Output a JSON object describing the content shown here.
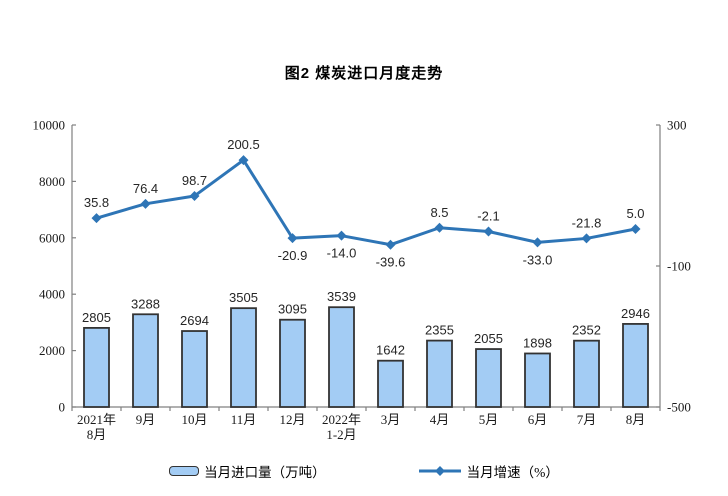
{
  "title": "图2 煤炭进口月度走势",
  "colors": {
    "bar_fill": "#a3ccf4",
    "bar_border": "#333333",
    "line": "#2e75b6",
    "axis": "#808080",
    "text": "#1a1a1a"
  },
  "legend": {
    "bar_label": "当月进口量（万吨）",
    "line_label": "当月增速（%）"
  },
  "chart_data": {
    "type": "bar+line",
    "title": "图2 煤炭进口月度走势",
    "categories": [
      [
        "2021年",
        "8月"
      ],
      [
        "9月"
      ],
      [
        "10月"
      ],
      [
        "11月"
      ],
      [
        "12月"
      ],
      [
        "2022年",
        "1-2月"
      ],
      [
        "3月"
      ],
      [
        "4月"
      ],
      [
        "5月"
      ],
      [
        "6月"
      ],
      [
        "7月"
      ],
      [
        "8月"
      ]
    ],
    "series": [
      {
        "name": "当月进口量（万吨）",
        "type": "bar",
        "axis": "left",
        "values": [
          2805,
          3288,
          2694,
          3505,
          3095,
          3539,
          1642,
          2355,
          2055,
          1898,
          2352,
          2946
        ]
      },
      {
        "name": "当月增速（%）",
        "type": "line",
        "axis": "right",
        "values": [
          35.8,
          76.4,
          98.7,
          200.5,
          -20.9,
          -14.0,
          -39.6,
          8.5,
          -2.1,
          -33.0,
          -21.8,
          5.0
        ],
        "label_positions": [
          "above",
          "above",
          "above",
          "above",
          "below",
          "below",
          "below",
          "above",
          "above",
          "below",
          "above",
          "above"
        ]
      }
    ],
    "left_axis": {
      "min": 0,
      "max": 10000,
      "ticks": [
        0,
        2000,
        4000,
        6000,
        8000,
        10000
      ]
    },
    "right_axis": {
      "min": -500,
      "max": 300,
      "ticks": [
        -500,
        -100,
        300
      ]
    },
    "grid": false,
    "legend_position": "bottom"
  }
}
